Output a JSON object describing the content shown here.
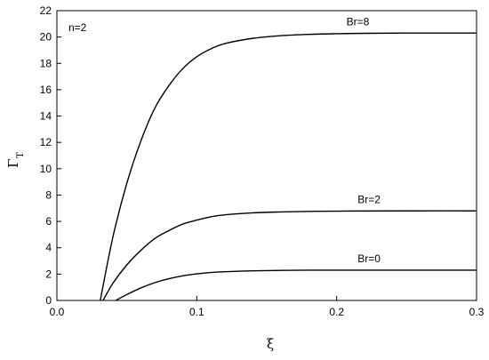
{
  "chart_data": {
    "type": "line",
    "title": "",
    "annotation": "n=2",
    "xlabel": "ξ",
    "ylabel": "Γ",
    "ylabel_subscript": "T",
    "xlim": [
      0.0,
      0.3
    ],
    "ylim": [
      0,
      22
    ],
    "x_ticks": [
      0.0,
      0.1,
      0.2,
      0.3
    ],
    "x_tick_labels": [
      "0.0",
      "0.1",
      "0.2",
      "0.3"
    ],
    "y_ticks": [
      0,
      2,
      4,
      6,
      8,
      10,
      12,
      14,
      16,
      18,
      20,
      22
    ],
    "y_tick_labels": [
      "0",
      "2",
      "4",
      "6",
      "8",
      "10",
      "12",
      "14",
      "16",
      "18",
      "20",
      "22"
    ],
    "grid": false,
    "legend": "none",
    "series": [
      {
        "name": "Br=8",
        "x": [
          0.031,
          0.04,
          0.05,
          0.06,
          0.07,
          0.08,
          0.09,
          0.1,
          0.11,
          0.12,
          0.14,
          0.16,
          0.18,
          0.2,
          0.22,
          0.25,
          0.3
        ],
        "values": [
          0.0,
          4.8,
          8.9,
          12.1,
          14.6,
          16.3,
          17.6,
          18.5,
          19.1,
          19.5,
          19.9,
          20.1,
          20.2,
          20.25,
          20.28,
          20.3,
          20.3
        ]
      },
      {
        "name": "Br=2",
        "x": [
          0.033,
          0.04,
          0.05,
          0.06,
          0.07,
          0.08,
          0.09,
          0.1,
          0.11,
          0.12,
          0.14,
          0.16,
          0.18,
          0.2,
          0.22,
          0.25,
          0.3
        ],
        "values": [
          0.0,
          1.3,
          2.7,
          3.8,
          4.7,
          5.3,
          5.8,
          6.1,
          6.35,
          6.5,
          6.65,
          6.72,
          6.76,
          6.78,
          6.79,
          6.8,
          6.8
        ]
      },
      {
        "name": "Br=0",
        "x": [
          0.042,
          0.05,
          0.06,
          0.07,
          0.08,
          0.09,
          0.1,
          0.11,
          0.12,
          0.14,
          0.16,
          0.18,
          0.2,
          0.22,
          0.25,
          0.3
        ],
        "values": [
          0.0,
          0.45,
          0.95,
          1.35,
          1.65,
          1.87,
          2.02,
          2.12,
          2.18,
          2.25,
          2.28,
          2.3,
          2.3,
          2.3,
          2.3,
          2.3
        ]
      }
    ],
    "series_label_anchors": [
      {
        "name": "Br=8",
        "x": 0.207,
        "y": 20.9
      },
      {
        "name": "Br=2",
        "x": 0.215,
        "y": 7.4
      },
      {
        "name": "Br=0",
        "x": 0.215,
        "y": 2.9
      }
    ]
  }
}
